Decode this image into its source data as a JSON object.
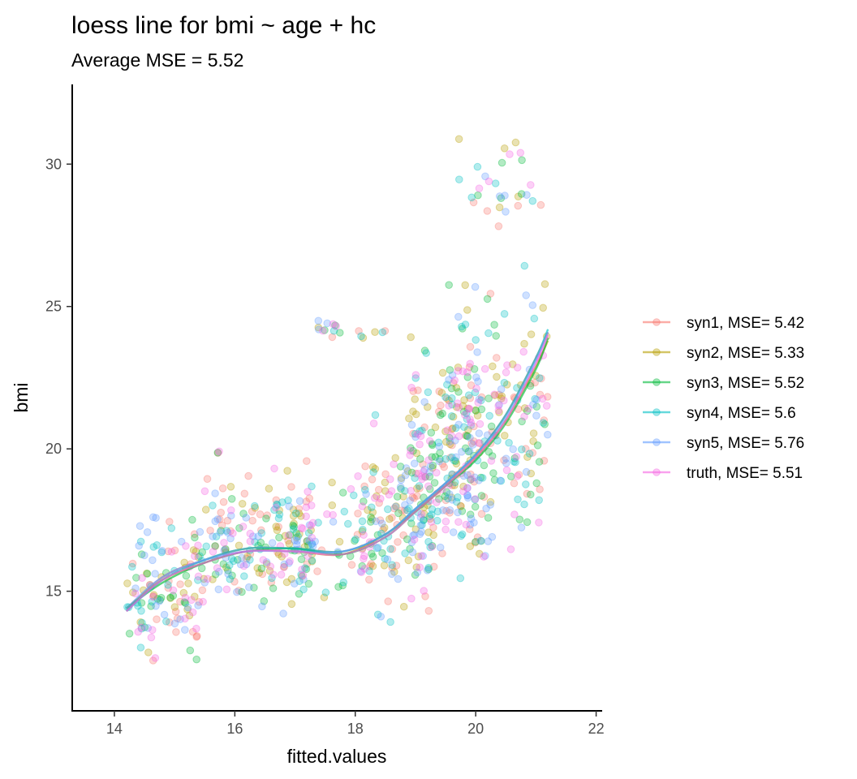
{
  "chart_data": {
    "type": "scatter",
    "title": "loess line for bmi ~ age + hc",
    "subtitle": "Average MSE = 5.52",
    "xlabel": "fitted.values",
    "ylabel": "bmi",
    "xlim": [
      13.3,
      22.1
    ],
    "ylim": [
      10.8,
      32.8
    ],
    "x_ticks": [
      14,
      16,
      18,
      20,
      22
    ],
    "y_ticks": [
      15,
      20,
      25,
      30
    ],
    "grid": false,
    "legend_position": "right",
    "point_alpha": 0.3,
    "series": [
      {
        "name": "syn1, MSE= 5.42",
        "color": "#F8766D",
        "loess": {
          "x": [
            14.2,
            14.8,
            15.5,
            16.2,
            17.0,
            17.8,
            18.5,
            19.0,
            19.5,
            20.0,
            20.5,
            21.0,
            21.2
          ],
          "y": [
            14.3,
            15.5,
            16.1,
            16.5,
            16.5,
            16.4,
            17.0,
            17.9,
            18.8,
            19.8,
            21.2,
            23.2,
            24.1
          ]
        }
      },
      {
        "name": "syn2, MSE= 5.33",
        "color": "#B79F00",
        "loess": {
          "x": [
            14.2,
            14.8,
            15.5,
            16.2,
            17.0,
            17.8,
            18.5,
            19.0,
            19.5,
            20.0,
            20.5,
            21.0,
            21.2
          ],
          "y": [
            14.4,
            15.4,
            16.0,
            16.4,
            16.4,
            16.3,
            17.0,
            17.8,
            18.7,
            19.7,
            21.0,
            22.9,
            23.8
          ]
        }
      },
      {
        "name": "syn3, MSE= 5.52",
        "color": "#00BA38",
        "loess": {
          "x": [
            14.2,
            14.8,
            15.5,
            16.2,
            17.0,
            17.8,
            18.5,
            19.0,
            19.5,
            20.0,
            20.5,
            21.0,
            21.2
          ],
          "y": [
            14.4,
            15.3,
            16.0,
            16.4,
            16.5,
            16.3,
            16.9,
            17.8,
            18.7,
            19.6,
            20.9,
            22.8,
            23.9
          ]
        }
      },
      {
        "name": "syn4, MSE= 5.6",
        "color": "#00BFC4",
        "loess": {
          "x": [
            14.2,
            14.8,
            15.5,
            16.2,
            17.0,
            17.8,
            18.5,
            19.0,
            19.5,
            20.0,
            20.5,
            21.0,
            21.2
          ],
          "y": [
            14.3,
            15.4,
            16.1,
            16.5,
            16.5,
            16.4,
            17.0,
            17.9,
            18.8,
            19.8,
            21.2,
            23.2,
            24.2
          ]
        }
      },
      {
        "name": "syn5, MSE= 5.76",
        "color": "#619CFF",
        "loess": {
          "x": [
            14.2,
            14.8,
            15.5,
            16.2,
            17.0,
            17.8,
            18.5,
            19.0,
            19.5,
            20.0,
            20.5,
            21.0,
            21.2
          ],
          "y": [
            14.4,
            15.5,
            16.1,
            16.4,
            16.4,
            16.4,
            17.0,
            17.9,
            18.8,
            19.8,
            21.1,
            23.1,
            24.1
          ]
        }
      },
      {
        "name": "truth, MSE= 5.51",
        "color": "#F564E3",
        "loess": {
          "x": [
            14.2,
            14.8,
            15.5,
            16.2,
            17.0,
            17.8,
            18.5,
            19.0,
            19.5,
            20.0,
            20.5,
            21.0,
            21.2
          ],
          "y": [
            14.3,
            15.4,
            16.0,
            16.4,
            16.4,
            16.3,
            16.9,
            17.8,
            18.7,
            19.7,
            21.0,
            23.0,
            24.0
          ]
        }
      }
    ],
    "point_clusters": [
      {
        "xmin": 14.2,
        "xmax": 15.5,
        "ymin": 11.7,
        "ymax": 18.6,
        "n": 22
      },
      {
        "xmin": 15.5,
        "xmax": 17.3,
        "ymin": 13.3,
        "ymax": 20.4,
        "n": 32
      },
      {
        "xmin": 16.8,
        "xmax": 18.3,
        "ymin": 13.7,
        "ymax": 19.9,
        "n": 12
      },
      {
        "xmin": 17.3,
        "xmax": 18.5,
        "ymin": 23.8,
        "ymax": 24.6,
        "n": 3
      },
      {
        "xmin": 18.1,
        "xmax": 19.3,
        "ymin": 13.0,
        "ymax": 22.0,
        "n": 26
      },
      {
        "xmin": 18.9,
        "xmax": 20.1,
        "ymin": 14.5,
        "ymax": 25.0,
        "n": 32
      },
      {
        "xmin": 19.5,
        "xmax": 21.2,
        "ymin": 15.0,
        "ymax": 27.0,
        "n": 36
      },
      {
        "xmin": 19.6,
        "xmax": 21.1,
        "ymin": 27.0,
        "ymax": 31.7,
        "n": 5
      }
    ]
  }
}
